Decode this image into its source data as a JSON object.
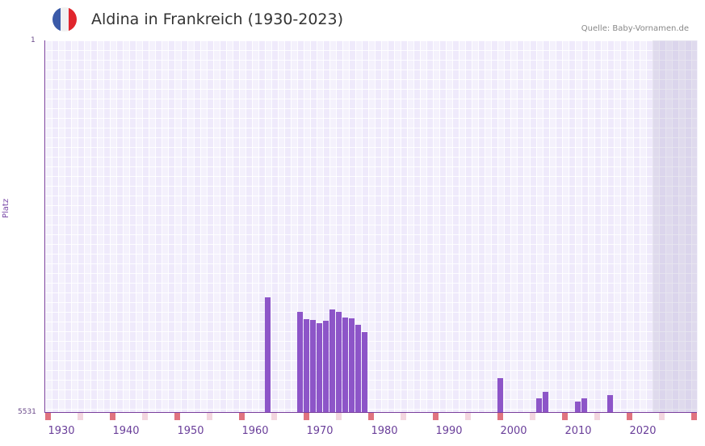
{
  "header": {
    "title": "Aldina in Frankreich (1930-2023)",
    "source": "Quelle: Baby-Vornamen.de",
    "flag_colors": [
      "#3a5aa8",
      "#f1f1f1",
      "#e0262d"
    ]
  },
  "axis": {
    "y_label": "Platz",
    "y_top": "1",
    "y_bottom": "5531",
    "x_ticks": [
      "1930",
      "1940",
      "1950",
      "1960",
      "1970",
      "1980",
      "1990",
      "2000",
      "2010",
      "2020"
    ]
  },
  "colors": {
    "bar": "#8d55c8",
    "axis": "#7a3f9d",
    "marker_strong": "#e0737f",
    "marker_light": "#f3d6df"
  },
  "chart_data": {
    "type": "bar",
    "title": "Aldina in Frankreich (1930-2023)",
    "xlabel": "",
    "ylabel": "Platz",
    "ylim": [
      5531,
      1
    ],
    "y_inverted": true,
    "grid": true,
    "source": "Quelle: Baby-Vornamen.de",
    "categories": [
      1962,
      1967,
      1968,
      1969,
      1970,
      1971,
      1972,
      1973,
      1974,
      1975,
      1976,
      1977,
      1998,
      2004,
      2005,
      2010,
      2011,
      2015
    ],
    "values": [
      3824,
      4040,
      4148,
      4160,
      4209,
      4173,
      4005,
      4040,
      4124,
      4136,
      4232,
      4340,
      5026,
      5327,
      5231,
      5375,
      5327,
      5279
    ]
  }
}
